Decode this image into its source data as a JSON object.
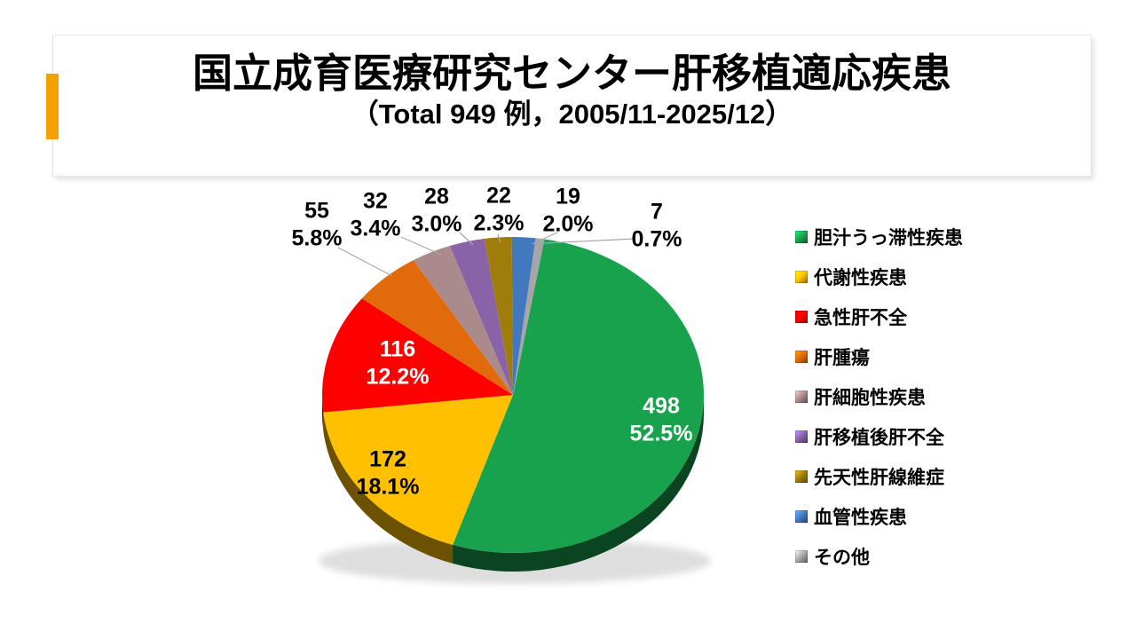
{
  "chart_data": {
    "type": "pie",
    "style": "3d-pie",
    "title": "国立成育医療研究センター肝移植適応疾患",
    "subtitle": "（Total 949 例，2005/11-2025/12）",
    "total": 949,
    "legend_position": "right",
    "start_angle_deg": 9.5,
    "series": [
      {
        "label": "胆汁うっ滞性疾患",
        "value": 498,
        "pct": "52.5%",
        "color": "#18A24D",
        "label_inside": true,
        "label_color": "#FFFFFF"
      },
      {
        "label": "代謝性疾患",
        "value": 172,
        "pct": "18.1%",
        "color": "#FFC000",
        "label_inside": true,
        "label_color": "#000000"
      },
      {
        "label": "急性肝不全",
        "value": 116,
        "pct": "12.2%",
        "color": "#FF0000",
        "label_inside": true,
        "label_color": "#FFFFFF"
      },
      {
        "label": "肝腫瘍",
        "value": 55,
        "pct": "5.8%",
        "color": "#E16B0B",
        "label_inside": false,
        "label_color": "#000000"
      },
      {
        "label": "肝細胞性疾患",
        "value": 32,
        "pct": "3.4%",
        "color": "#AB8A8B",
        "label_inside": false,
        "label_color": "#000000"
      },
      {
        "label": "肝移植後肝不全",
        "value": 28,
        "pct": "3.0%",
        "color": "#8A62A8",
        "label_inside": false,
        "label_color": "#000000"
      },
      {
        "label": "先天性肝線維症",
        "value": 22,
        "pct": "2.3%",
        "color": "#A07D0A",
        "label_inside": false,
        "label_color": "#000000"
      },
      {
        "label": "血管性疾患",
        "value": 19,
        "pct": "2.0%",
        "color": "#4279BE",
        "label_inside": false,
        "label_color": "#000000"
      },
      {
        "label": "その他",
        "value": 7,
        "pct": "0.7%",
        "color": "#A6A6A6",
        "label_inside": false,
        "label_color": "#000000"
      }
    ],
    "leader_line_color": "#A6A6A6"
  }
}
